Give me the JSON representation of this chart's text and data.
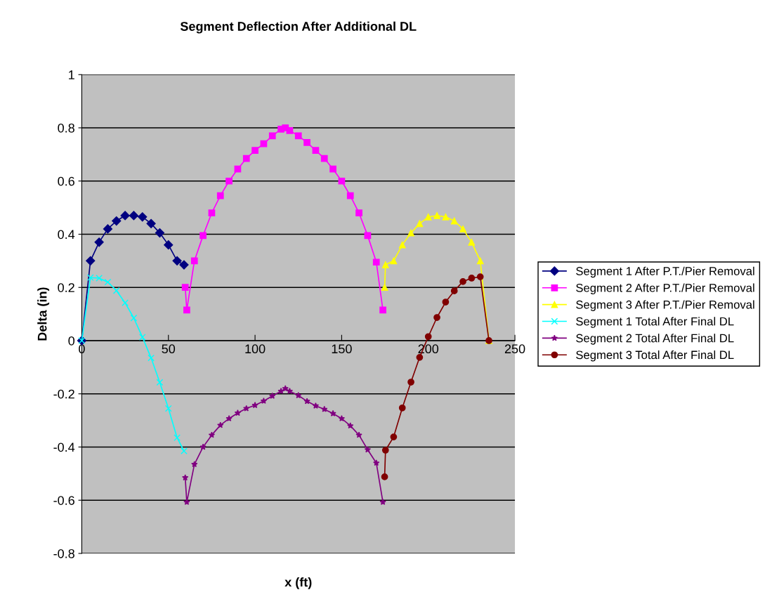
{
  "chart_data": {
    "type": "line",
    "title": "Segment Deflection After Additional DL",
    "xlabel": "x (ft)",
    "ylabel": "Delta (in)",
    "xlim": [
      0,
      250
    ],
    "xticks": [
      0,
      50,
      100,
      150,
      200,
      250
    ],
    "ylim": [
      -0.8,
      1
    ],
    "yticks": [
      -0.8,
      -0.6,
      -0.4,
      -0.2,
      0,
      0.2,
      0.4,
      0.6,
      0.8,
      1
    ],
    "grid": "y",
    "legend": "right",
    "series": [
      {
        "name": "Segment 1 After P.T./Pier Removal",
        "color": "#000080",
        "marker": "diamond",
        "x": [
          0,
          5,
          10,
          15,
          20,
          25,
          30,
          35,
          40,
          45,
          50,
          55,
          59
        ],
        "values": [
          0,
          0.3,
          0.37,
          0.42,
          0.45,
          0.47,
          0.47,
          0.465,
          0.44,
          0.405,
          0.36,
          0.3,
          0.285
        ]
      },
      {
        "name": "Segment 2 After P.T./Pier Removal",
        "color": "#ff00ff",
        "marker": "square",
        "x": [
          59.7,
          60.6,
          65,
          70,
          75,
          80,
          85,
          90,
          95,
          100,
          105,
          110,
          115,
          117.5,
          120,
          125,
          130,
          135,
          140,
          145,
          150,
          155,
          160,
          165,
          170,
          173.8
        ],
        "values": [
          0.2,
          0.115,
          0.3,
          0.395,
          0.48,
          0.545,
          0.6,
          0.645,
          0.685,
          0.715,
          0.74,
          0.77,
          0.795,
          0.8,
          0.79,
          0.77,
          0.745,
          0.715,
          0.685,
          0.645,
          0.6,
          0.545,
          0.48,
          0.395,
          0.295,
          0.115
        ]
      },
      {
        "name": "Segment 3 After P.T./Pier Removal",
        "color": "#ffff00",
        "marker": "triangle",
        "x": [
          174.8,
          175.3,
          180,
          185,
          190,
          195,
          200,
          205,
          210,
          215,
          220,
          225,
          230,
          235
        ],
        "values": [
          0.2,
          0.285,
          0.3,
          0.36,
          0.405,
          0.44,
          0.465,
          0.47,
          0.465,
          0.45,
          0.42,
          0.37,
          0.3,
          0
        ]
      },
      {
        "name": "Segment 1 Total After Final DL",
        "color": "#00ffff",
        "marker": "cross",
        "x": [
          0,
          5,
          10,
          15,
          20,
          25,
          30,
          35,
          40,
          45,
          50,
          55,
          59
        ],
        "values": [
          0,
          0.237,
          0.235,
          0.22,
          0.188,
          0.142,
          0.085,
          0.013,
          -0.065,
          -0.157,
          -0.255,
          -0.365,
          -0.415
        ]
      },
      {
        "name": "Segment 2 Total After Final DL",
        "color": "#800080",
        "marker": "star",
        "x": [
          59.7,
          60.6,
          65,
          70,
          75,
          80,
          85,
          90,
          95,
          100,
          105,
          110,
          115,
          117.5,
          120,
          125,
          130,
          135,
          140,
          145,
          150,
          155,
          160,
          165,
          170,
          173.8
        ],
        "values": [
          -0.515,
          -0.607,
          -0.465,
          -0.4,
          -0.355,
          -0.318,
          -0.293,
          -0.272,
          -0.255,
          -0.243,
          -0.227,
          -0.208,
          -0.19,
          -0.18,
          -0.19,
          -0.206,
          -0.228,
          -0.245,
          -0.258,
          -0.274,
          -0.293,
          -0.32,
          -0.355,
          -0.41,
          -0.46,
          -0.607
        ]
      },
      {
        "name": "Segment 3 Total After Final DL",
        "color": "#800000",
        "marker": "circle",
        "x": [
          174.8,
          175.3,
          180,
          185,
          190,
          195,
          200,
          205,
          210,
          215,
          220,
          225,
          230,
          235
        ],
        "values": [
          -0.512,
          -0.412,
          -0.362,
          -0.253,
          -0.156,
          -0.063,
          0.015,
          0.087,
          0.145,
          0.187,
          0.222,
          0.235,
          0.24,
          0
        ]
      }
    ]
  }
}
